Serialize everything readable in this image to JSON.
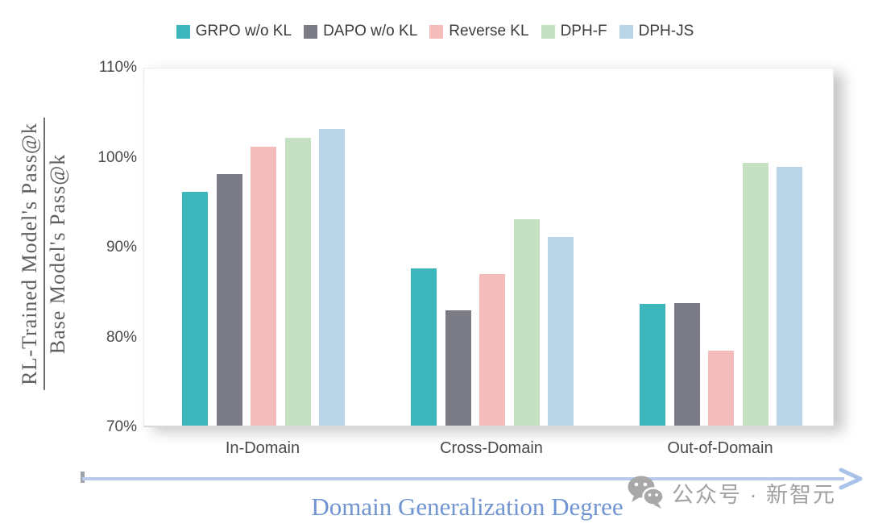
{
  "figure": {
    "watermark": {
      "text": "公众号 · 新智元",
      "icon": "wechat-bubbles"
    }
  },
  "chart_data": {
    "type": "bar",
    "title": "",
    "categories": [
      "In-Domain",
      "Cross-Domain",
      "Out-of-Domain"
    ],
    "series": [
      {
        "name": "GRPO w/o KL",
        "color": "#3cb5bb",
        "values": [
          96.0,
          87.5,
          83.5
        ]
      },
      {
        "name": "DAPO w/o KL",
        "color": "#7b7b85",
        "values": [
          98.0,
          82.8,
          83.6
        ]
      },
      {
        "name": "Reverse KL",
        "color": "#f4bcba",
        "values": [
          101.0,
          86.9,
          78.3
        ]
      },
      {
        "name": "DPH-F",
        "color": "#c5e0c3",
        "values": [
          102.0,
          93.0,
          99.2
        ]
      },
      {
        "name": "DPH-JS",
        "color": "#bad5e8",
        "values": [
          103.0,
          91.0,
          98.8
        ]
      }
    ],
    "ylabel": {
      "numerator": "RL-Trained Model's Pass@k",
      "denominator": "Base Model's Pass@k"
    },
    "xlabel": "Domain Generalization Degree",
    "xlabel_color": "#7195d2",
    "ylim": [
      70,
      110
    ],
    "ytick_labels": [
      "110%",
      "100%",
      "90%",
      "80%",
      "70%"
    ],
    "legend_position": "top",
    "grid": false,
    "axis_arrow_color": "#b9c9ea"
  }
}
